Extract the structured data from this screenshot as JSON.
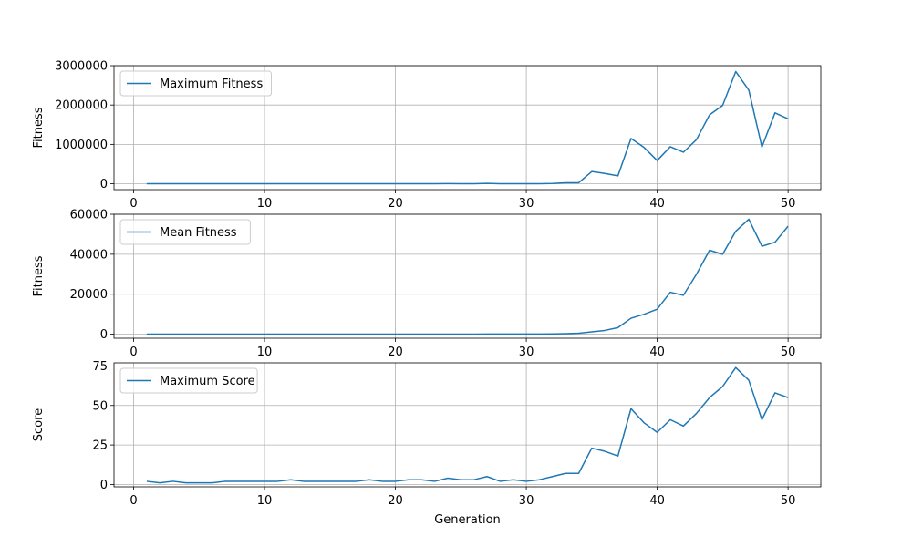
{
  "chart_data": [
    {
      "type": "line",
      "title": "",
      "xlabel": "",
      "ylabel": "Fitness",
      "xlim": [
        -1.5,
        52.5
      ],
      "ylim": [
        -150000,
        3000000
      ],
      "xticks": [
        0,
        10,
        20,
        30,
        40,
        50
      ],
      "xtick_labels": [
        "0",
        "10",
        "20",
        "30",
        "40",
        "50"
      ],
      "yticks": [
        0,
        1000000,
        2000000,
        3000000
      ],
      "ytick_labels": [
        "0",
        "1000000",
        "2000000",
        "3000000"
      ],
      "grid": true,
      "legend_position": "upper-left",
      "series": [
        {
          "name": "Maximum Fitness",
          "color": "#1f77b4",
          "x": [
            1,
            2,
            3,
            4,
            5,
            6,
            7,
            8,
            9,
            10,
            11,
            12,
            13,
            14,
            15,
            16,
            17,
            18,
            19,
            20,
            21,
            22,
            23,
            24,
            25,
            26,
            27,
            28,
            29,
            30,
            31,
            32,
            33,
            34,
            35,
            36,
            37,
            38,
            39,
            40,
            41,
            42,
            43,
            44,
            45,
            46,
            47,
            48,
            49,
            50
          ],
          "y": [
            1000,
            500,
            800,
            400,
            300,
            300,
            600,
            500,
            500,
            500,
            500,
            1500,
            600,
            500,
            500,
            500,
            600,
            1000,
            600,
            600,
            1500,
            1500,
            700,
            3000,
            1500,
            1500,
            8000,
            1500,
            1800,
            700,
            1500,
            7000,
            25000,
            25000,
            310000,
            260000,
            200000,
            1150000,
            920000,
            590000,
            940000,
            800000,
            1120000,
            1750000,
            1990000,
            2850000,
            2380000,
            930000,
            1800000,
            1650000
          ]
        }
      ]
    },
    {
      "type": "line",
      "title": "",
      "xlabel": "",
      "ylabel": "Fitness",
      "xlim": [
        -1.5,
        52.5
      ],
      "ylim": [
        -2000,
        60000
      ],
      "xticks": [
        0,
        10,
        20,
        30,
        40,
        50
      ],
      "xtick_labels": [
        "0",
        "10",
        "20",
        "30",
        "40",
        "50"
      ],
      "yticks": [
        0,
        20000,
        40000,
        60000
      ],
      "ytick_labels": [
        "0",
        "20000",
        "40000",
        "60000"
      ],
      "grid": true,
      "legend_position": "upper-left",
      "series": [
        {
          "name": "Mean Fitness",
          "color": "#1f77b4",
          "x": [
            1,
            2,
            3,
            4,
            5,
            6,
            7,
            8,
            9,
            10,
            11,
            12,
            13,
            14,
            15,
            16,
            17,
            18,
            19,
            20,
            21,
            22,
            23,
            24,
            25,
            26,
            27,
            28,
            29,
            30,
            31,
            32,
            33,
            34,
            35,
            36,
            37,
            38,
            39,
            40,
            41,
            42,
            43,
            44,
            45,
            46,
            47,
            48,
            49,
            50
          ],
          "y": [
            30,
            30,
            30,
            30,
            30,
            30,
            30,
            30,
            30,
            30,
            30,
            40,
            40,
            40,
            40,
            40,
            50,
            60,
            50,
            50,
            60,
            60,
            50,
            80,
            80,
            80,
            100,
            100,
            120,
            130,
            120,
            180,
            300,
            500,
            1200,
            1900,
            3300,
            8000,
            10000,
            12500,
            21000,
            19500,
            30000,
            42000,
            40000,
            51500,
            57500,
            44000,
            46000,
            54000
          ]
        }
      ]
    },
    {
      "type": "line",
      "title": "",
      "xlabel": "Generation",
      "ylabel": "Score",
      "xlim": [
        -1.5,
        52.5
      ],
      "ylim": [
        -1.5,
        77
      ],
      "xticks": [
        0,
        10,
        20,
        30,
        40,
        50
      ],
      "xtick_labels": [
        "0",
        "10",
        "20",
        "30",
        "40",
        "50"
      ],
      "yticks": [
        0,
        25,
        50,
        75
      ],
      "ytick_labels": [
        "0",
        "25",
        "50",
        "75"
      ],
      "grid": true,
      "legend_position": "upper-left",
      "series": [
        {
          "name": "Maximum Score",
          "color": "#1f77b4",
          "x": [
            1,
            2,
            3,
            4,
            5,
            6,
            7,
            8,
            9,
            10,
            11,
            12,
            13,
            14,
            15,
            16,
            17,
            18,
            19,
            20,
            21,
            22,
            23,
            24,
            25,
            26,
            27,
            28,
            29,
            30,
            31,
            32,
            33,
            34,
            35,
            36,
            37,
            38,
            39,
            40,
            41,
            42,
            43,
            44,
            45,
            46,
            47,
            48,
            49,
            50
          ],
          "y": [
            2,
            1,
            2,
            1,
            1,
            1,
            2,
            2,
            2,
            2,
            2,
            3,
            2,
            2,
            2,
            2,
            2,
            3,
            2,
            2,
            3,
            3,
            2,
            4,
            3,
            3,
            5,
            2,
            3,
            2,
            3,
            5,
            7,
            7,
            23,
            21,
            18,
            48,
            39,
            33,
            41,
            37,
            45,
            55,
            62,
            74,
            66,
            41,
            58,
            55
          ]
        }
      ]
    }
  ]
}
